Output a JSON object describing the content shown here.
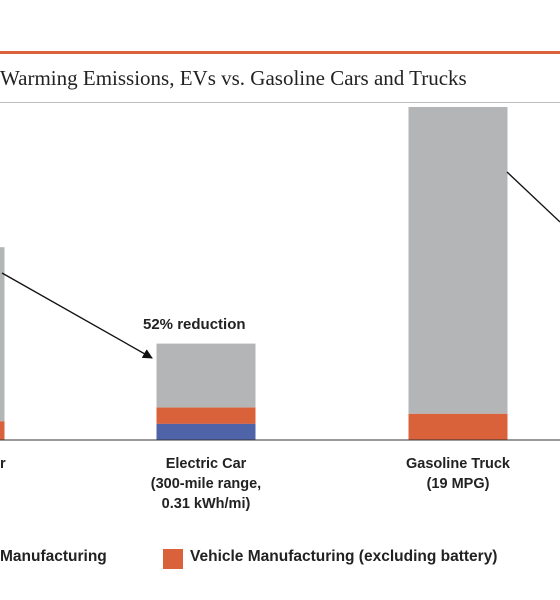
{
  "chart_data": {
    "type": "bar",
    "stacked": true,
    "title": "Warming Emissions, EVs vs. Gasoline Cars and Trucks",
    "categories": [
      "r",
      "Electric Car\n(300-mile range,\n0.31 kWh/mi)",
      "Gasoline Truck\n(19 MPG)"
    ],
    "series": [
      {
        "key": "battery",
        "color": "#4f64a8",
        "values": [
          0,
          13,
          0
        ]
      },
      {
        "name": "Vehicle Manufacturing (excluding battery)",
        "key": "vehicle",
        "color": "#d9623b",
        "values": [
          15,
          13,
          21
        ]
      },
      {
        "key": "operation",
        "color": "#b3b5b7",
        "values": [
          139,
          51,
          245
        ]
      }
    ],
    "ylim": [
      0,
      270
    ],
    "annotations": [
      "52% reduction"
    ],
    "legend_position": "bottom",
    "legend": [
      {
        "label": "Manufacturing",
        "color": "#4f64a8"
      },
      {
        "label": "Vehicle Manufacturing (excluding battery)",
        "color": "#d9623b"
      }
    ]
  }
}
